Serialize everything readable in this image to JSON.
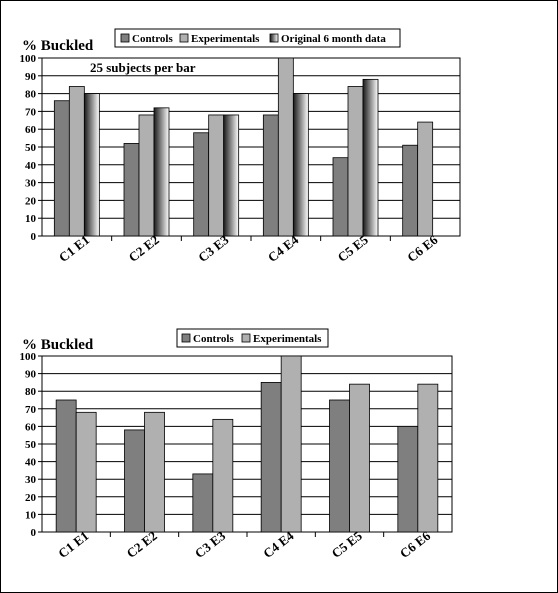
{
  "chart_data": [
    {
      "type": "bar",
      "ylabel": "% Buckled",
      "annotation": "25 subjects per bar",
      "ylim": [
        0,
        100
      ],
      "yticks": [
        0,
        10,
        20,
        30,
        40,
        50,
        60,
        70,
        80,
        90,
        100
      ],
      "grid": "horizontal",
      "legend_position": "top",
      "categories": [
        "C1 E1",
        "C2 E2",
        "C3 E3",
        "C4 E4",
        "C5 E5",
        "C6 E6"
      ],
      "series": [
        {
          "name": "Controls",
          "color": "#7f7f7f",
          "values": [
            76,
            52,
            58,
            68,
            44,
            51
          ]
        },
        {
          "name": "Experimentals",
          "color": "#b0b0b0",
          "values": [
            84,
            68,
            68,
            100,
            84,
            64
          ]
        },
        {
          "name": "Original 6 month data",
          "color": "gradient-black-white",
          "values": [
            80,
            72,
            68,
            80,
            88,
            null
          ]
        }
      ]
    },
    {
      "type": "bar",
      "ylabel": "% Buckled",
      "ylim": [
        0,
        100
      ],
      "yticks": [
        0,
        10,
        20,
        30,
        40,
        50,
        60,
        70,
        80,
        90,
        100
      ],
      "grid": "horizontal",
      "legend_position": "top",
      "categories": [
        "C1 E1",
        "C2 E2",
        "C3 E3",
        "C4 E4",
        "C5 E5",
        "C6 E6"
      ],
      "series": [
        {
          "name": "Controls",
          "color": "#7f7f7f",
          "values": [
            75,
            58,
            33,
            85,
            75,
            60
          ]
        },
        {
          "name": "Experimentals",
          "color": "#b0b0b0",
          "values": [
            68,
            68,
            64,
            100,
            84,
            84
          ]
        }
      ]
    }
  ]
}
